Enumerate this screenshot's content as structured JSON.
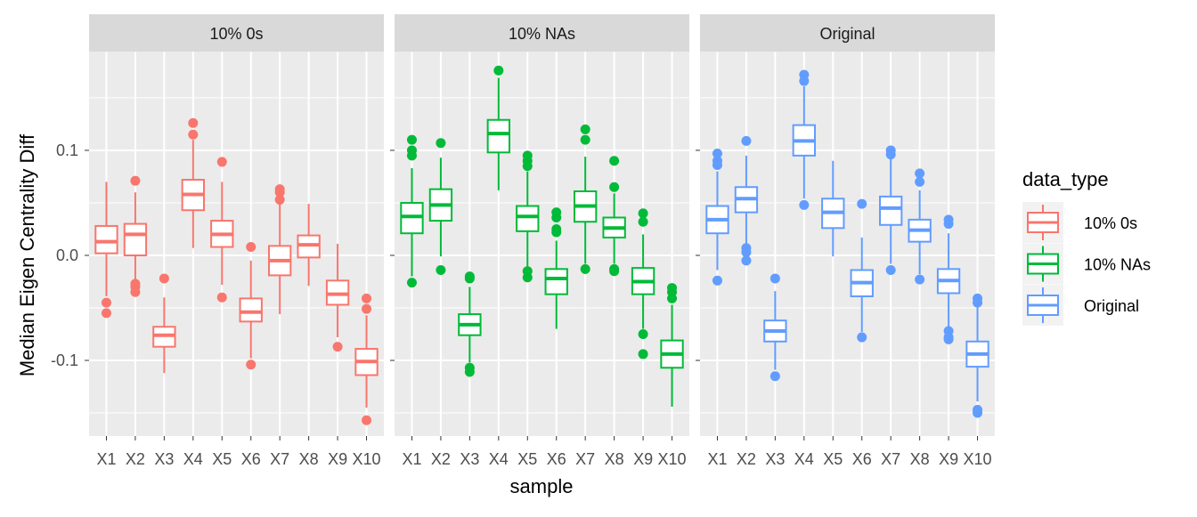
{
  "chart_data": {
    "type": "boxplot",
    "xlabel": "sample",
    "ylabel": "Median Eigen Centrality Diff",
    "ylim": [
      -0.172,
      0.194
    ],
    "y_ticks": [
      -0.1,
      0.0,
      0.1
    ],
    "y_tick_labels": [
      "-0.1",
      "0.0",
      "0.1"
    ],
    "grid": true,
    "legend": {
      "title": "data_type",
      "placement": "right",
      "entries": [
        "10% 0s",
        "10% NAs",
        "Original"
      ]
    },
    "categories": [
      "X1",
      "X2",
      "X3",
      "X4",
      "X5",
      "X6",
      "X7",
      "X8",
      "X9",
      "X10"
    ],
    "facets": [
      {
        "label": "10% 0s",
        "color": "#F8766D",
        "boxes": [
          {
            "lo": -0.039,
            "q1": 0.002,
            "med": 0.013,
            "q3": 0.028,
            "hi": 0.07,
            "out": [
              -0.045,
              -0.055
            ]
          },
          {
            "lo": -0.023,
            "q1": 0.0,
            "med": 0.02,
            "q3": 0.03,
            "hi": 0.06,
            "out": [
              0.071,
              -0.027,
              -0.03,
              -0.035
            ]
          },
          {
            "lo": -0.112,
            "q1": -0.087,
            "med": -0.076,
            "q3": -0.068,
            "hi": -0.04,
            "out": [
              -0.022
            ]
          },
          {
            "lo": 0.007,
            "q1": 0.043,
            "med": 0.058,
            "q3": 0.072,
            "hi": 0.11,
            "out": [
              0.115,
              0.126
            ]
          },
          {
            "lo": -0.028,
            "q1": 0.008,
            "med": 0.02,
            "q3": 0.033,
            "hi": 0.07,
            "out": [
              0.089,
              -0.04
            ]
          },
          {
            "lo": -0.098,
            "q1": -0.063,
            "med": -0.054,
            "q3": -0.041,
            "hi": -0.005,
            "out": [
              0.008,
              -0.104
            ]
          },
          {
            "lo": -0.056,
            "q1": -0.019,
            "med": -0.005,
            "q3": 0.009,
            "hi": 0.05,
            "out": [
              0.053,
              0.06,
              0.063
            ]
          },
          {
            "lo": -0.029,
            "q1": -0.002,
            "med": 0.01,
            "q3": 0.019,
            "hi": 0.049,
            "out": []
          },
          {
            "lo": -0.078,
            "q1": -0.047,
            "med": -0.037,
            "q3": -0.024,
            "hi": 0.011,
            "out": [
              -0.087
            ]
          },
          {
            "lo": -0.145,
            "q1": -0.114,
            "med": -0.101,
            "q3": -0.089,
            "hi": -0.057,
            "out": [
              -0.041,
              -0.051,
              -0.157
            ]
          }
        ]
      },
      {
        "label": "10% NAs",
        "color": "#00BA38",
        "boxes": [
          {
            "lo": -0.02,
            "q1": 0.021,
            "med": 0.037,
            "q3": 0.05,
            "hi": 0.083,
            "out": [
              0.095,
              0.1,
              0.11,
              -0.026
            ]
          },
          {
            "lo": -0.001,
            "q1": 0.033,
            "med": 0.048,
            "q3": 0.063,
            "hi": 0.093,
            "out": [
              0.107,
              -0.014
            ]
          },
          {
            "lo": -0.102,
            "q1": -0.076,
            "med": -0.066,
            "q3": -0.056,
            "hi": -0.03,
            "out": [
              -0.02,
              -0.022,
              -0.107,
              -0.111
            ]
          },
          {
            "lo": 0.062,
            "q1": 0.098,
            "med": 0.116,
            "q3": 0.129,
            "hi": 0.169,
            "out": [
              0.176
            ]
          },
          {
            "lo": -0.011,
            "q1": 0.023,
            "med": 0.037,
            "q3": 0.047,
            "hi": 0.08,
            "out": [
              0.085,
              0.09,
              0.095,
              -0.015,
              -0.021
            ]
          },
          {
            "lo": -0.07,
            "q1": -0.037,
            "med": -0.022,
            "q3": -0.013,
            "hi": 0.014,
            "out": [
              0.022,
              0.025,
              0.036,
              0.041
            ]
          },
          {
            "lo": -0.008,
            "q1": 0.032,
            "med": 0.047,
            "q3": 0.061,
            "hi": 0.094,
            "out": [
              0.11,
              0.12,
              -0.013
            ]
          },
          {
            "lo": -0.008,
            "q1": 0.017,
            "med": 0.026,
            "q3": 0.036,
            "hi": 0.059,
            "out": [
              0.065,
              0.09,
              -0.013,
              -0.015
            ]
          },
          {
            "lo": -0.07,
            "q1": -0.037,
            "med": -0.025,
            "q3": -0.012,
            "hi": 0.02,
            "out": [
              0.032,
              0.04,
              -0.075,
              -0.094
            ]
          },
          {
            "lo": -0.144,
            "q1": -0.107,
            "med": -0.094,
            "q3": -0.081,
            "hi": -0.047,
            "out": [
              -0.031,
              -0.035,
              -0.041
            ]
          }
        ]
      },
      {
        "label": "Original",
        "color": "#619CFF",
        "boxes": [
          {
            "lo": -0.014,
            "q1": 0.021,
            "med": 0.034,
            "q3": 0.047,
            "hi": 0.08,
            "out": [
              0.086,
              0.09,
              0.097,
              -0.024
            ]
          },
          {
            "lo": 0.01,
            "q1": 0.041,
            "med": 0.054,
            "q3": 0.065,
            "hi": 0.095,
            "out": [
              0.109,
              0.007,
              0.003,
              -0.005
            ]
          },
          {
            "lo": -0.109,
            "q1": -0.082,
            "med": -0.072,
            "q3": -0.062,
            "hi": -0.034,
            "out": [
              -0.022,
              -0.115
            ]
          },
          {
            "lo": 0.054,
            "q1": 0.095,
            "med": 0.109,
            "q3": 0.124,
            "hi": 0.161,
            "out": [
              0.166,
              0.172,
              0.048
            ]
          },
          {
            "lo": -0.001,
            "q1": 0.026,
            "med": 0.041,
            "q3": 0.054,
            "hi": 0.09,
            "out": []
          },
          {
            "lo": -0.073,
            "q1": -0.039,
            "med": -0.026,
            "q3": -0.014,
            "hi": 0.017,
            "out": [
              0.049,
              -0.078
            ]
          },
          {
            "lo": -0.008,
            "q1": 0.029,
            "med": 0.045,
            "q3": 0.056,
            "hi": 0.093,
            "out": [
              0.096,
              0.1,
              -0.014
            ]
          },
          {
            "lo": -0.018,
            "q1": 0.013,
            "med": 0.024,
            "q3": 0.034,
            "hi": 0.062,
            "out": [
              0.07,
              0.078,
              -0.023
            ]
          },
          {
            "lo": -0.069,
            "q1": -0.036,
            "med": -0.024,
            "q3": -0.013,
            "hi": 0.021,
            "out": [
              0.03,
              0.034,
              -0.072,
              -0.078,
              -0.08
            ]
          },
          {
            "lo": -0.139,
            "q1": -0.106,
            "med": -0.094,
            "q3": -0.082,
            "hi": -0.049,
            "out": [
              -0.041,
              -0.045,
              -0.147,
              -0.15
            ]
          }
        ]
      }
    ]
  }
}
